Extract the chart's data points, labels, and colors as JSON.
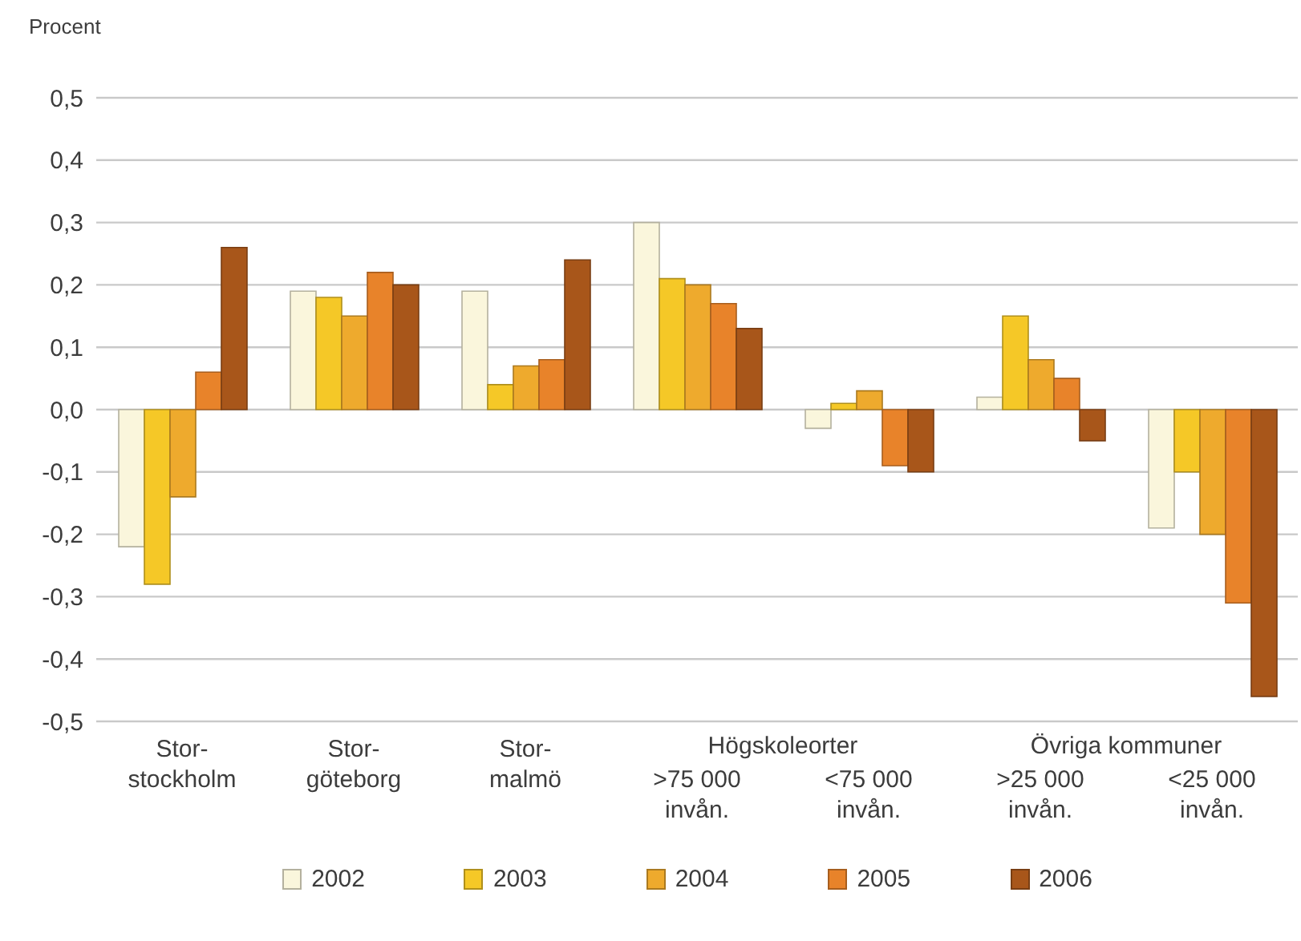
{
  "chart_data": {
    "type": "bar",
    "ylabel": "Procent",
    "categories": [
      "Stor-\nstockholm",
      "Stor-\ngöteborg",
      "Stor-\nmalmö",
      ">75 000\ninvån.",
      "<75 000\ninvån.",
      ">25 000\ninvån.",
      "<25 000\ninvån."
    ],
    "annotations": [
      "Högskoleorter",
      "Övriga kommuner"
    ],
    "series": [
      {
        "name": "2002",
        "color": "#faf6dc",
        "values": [
          -0.22,
          0.19,
          0.19,
          0.3,
          -0.03,
          0.02,
          -0.19
        ]
      },
      {
        "name": "2003",
        "color": "#f5c827",
        "values": [
          -0.28,
          0.18,
          0.04,
          0.21,
          0.01,
          0.15,
          -0.1
        ]
      },
      {
        "name": "2004",
        "color": "#eeaa2d",
        "values": [
          -0.14,
          0.15,
          0.07,
          0.2,
          0.03,
          0.08,
          -0.2
        ]
      },
      {
        "name": "2005",
        "color": "#e8832a",
        "values": [
          0.06,
          0.22,
          0.08,
          0.17,
          -0.09,
          0.05,
          -0.31
        ]
      },
      {
        "name": "2006",
        "color": "#a8561a",
        "values": [
          0.26,
          0.2,
          0.24,
          0.13,
          -0.1,
          -0.05,
          -0.46
        ]
      }
    ],
    "ylim": [
      -0.5,
      0.5
    ],
    "yticks": [
      {
        "value": -0.5,
        "label": "-0,5"
      },
      {
        "value": -0.4,
        "label": "-0,4"
      },
      {
        "value": -0.3,
        "label": "-0,3"
      },
      {
        "value": -0.2,
        "label": "-0,2"
      },
      {
        "value": -0.1,
        "label": "-0,1"
      },
      {
        "value": 0,
        "label": "0,0"
      },
      {
        "value": 0.1,
        "label": "0,1"
      },
      {
        "value": 0.2,
        "label": "0,2"
      },
      {
        "value": 0.3,
        "label": "0,3"
      },
      {
        "value": 0.4,
        "label": "0,4"
      },
      {
        "value": 0.5,
        "label": "0,5"
      }
    ],
    "grid": "y",
    "legend": "bottom"
  }
}
